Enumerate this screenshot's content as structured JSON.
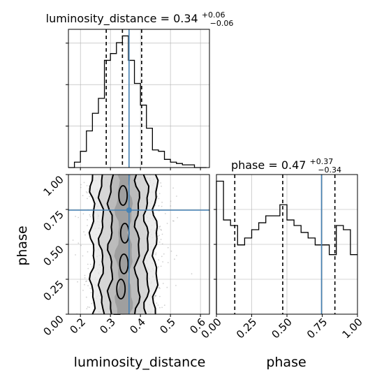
{
  "chart_data": [
    {
      "type": "histogram",
      "panel": "luminosity_distance-marginal",
      "title": {
        "param": "luminosity_distance",
        "median": "0.34",
        "upper": "+0.06",
        "lower": "−0.06"
      },
      "xlim": [
        0.16,
        0.63
      ],
      "bins": [
        0.16,
        0.18,
        0.2,
        0.22,
        0.24,
        0.26,
        0.28,
        0.3,
        0.32,
        0.34,
        0.36,
        0.38,
        0.4,
        0.42,
        0.44,
        0.46,
        0.48,
        0.5,
        0.52,
        0.54,
        0.56,
        0.58,
        0.6,
        0.62
      ],
      "counts": [
        0.0,
        0.04,
        0.12,
        0.27,
        0.4,
        0.51,
        0.79,
        0.84,
        0.92,
        0.97,
        0.79,
        0.62,
        0.46,
        0.29,
        0.13,
        0.12,
        0.06,
        0.04,
        0.03,
        0.02,
        0.02,
        0.0,
        0.0
      ],
      "quantile_lines": [
        0.286,
        0.34,
        0.404
      ],
      "truth": 0.362,
      "grid": true
    },
    {
      "type": "contour",
      "panel": "luminosity_distance-phase-joint",
      "xlabel": "luminosity_distance",
      "ylabel": "phase",
      "xlim": [
        0.16,
        0.63
      ],
      "ylim": [
        0.0,
        1.0
      ],
      "xticks": [
        "0.2",
        "0.3",
        "0.4",
        "0.5",
        "0.6"
      ],
      "yticks": [
        "0.00",
        "0.25",
        "0.50",
        "0.75",
        "1.00"
      ],
      "truth": {
        "x": 0.362,
        "y": 0.745
      },
      "grid": true
    },
    {
      "type": "histogram",
      "panel": "phase-marginal",
      "title": {
        "param": "phase",
        "median": "0.47",
        "upper": "+0.37",
        "lower": "−0.34"
      },
      "xlabel": "phase",
      "xlim": [
        0.0,
        1.0
      ],
      "xticks": [
        "0.00",
        "0.25",
        "0.50",
        "0.75",
        "1.00"
      ],
      "bins": [
        0.0,
        0.05,
        0.1,
        0.15,
        0.2,
        0.25,
        0.3,
        0.35,
        0.4,
        0.45,
        0.5,
        0.55,
        0.6,
        0.65,
        0.7,
        0.75,
        0.8,
        0.85,
        0.9,
        0.95,
        1.0
      ],
      "counts": [
        0.96,
        0.68,
        0.64,
        0.5,
        0.55,
        0.61,
        0.66,
        0.71,
        0.71,
        0.79,
        0.68,
        0.64,
        0.59,
        0.55,
        0.5,
        0.5,
        0.43,
        0.64,
        0.61,
        0.43
      ],
      "quantile_lines": [
        0.13,
        0.47,
        0.84
      ],
      "truth": 0.745,
      "grid": true
    }
  ],
  "colors": {
    "hist_line": "#000000",
    "truth": "#4682b4",
    "grid": "#b0b0b0",
    "quantile": "#000000",
    "scatter": "#9a9a9a"
  }
}
